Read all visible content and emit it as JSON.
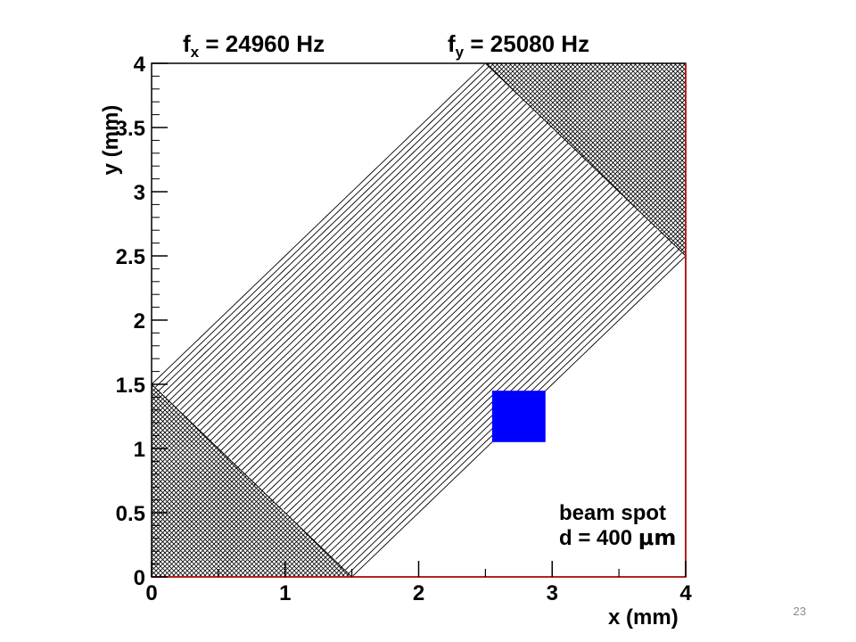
{
  "chart_data": {
    "type": "line",
    "title_left": {
      "main": "f",
      "sub": "x",
      "rest": " = 24960 Hz"
    },
    "title_right": {
      "main": "f",
      "sub": "y",
      "rest": " = 25080 Hz"
    },
    "xlabel": "x (mm)",
    "ylabel": "y (mm)",
    "xlim": [
      0,
      4
    ],
    "ylim": [
      0,
      4
    ],
    "x_ticks": [
      {
        "value": 0,
        "label": "0"
      },
      {
        "value": 1,
        "label": "1"
      },
      {
        "value": 2,
        "label": "2"
      },
      {
        "value": 3,
        "label": "3"
      },
      {
        "value": 4,
        "label": "4"
      }
    ],
    "y_ticks": [
      {
        "value": 0,
        "label": "0"
      },
      {
        "value": 0.5,
        "label": "0.5"
      },
      {
        "value": 1,
        "label": "1"
      },
      {
        "value": 1.5,
        "label": "1.5"
      },
      {
        "value": 2,
        "label": "2"
      },
      {
        "value": 2.5,
        "label": "2.5"
      },
      {
        "value": 3,
        "label": "3"
      },
      {
        "value": 3.5,
        "label": "3.5"
      },
      {
        "value": 4,
        "label": "4"
      }
    ],
    "scan_region_diagonal": {
      "corners": [
        [
          0,
          1.5
        ],
        [
          2.5,
          4
        ],
        [
          4,
          2.5
        ],
        [
          1.5,
          0
        ]
      ]
    },
    "dense_regions": [
      {
        "corners": [
          [
            0,
            0
          ],
          [
            0,
            1.5
          ],
          [
            1.5,
            0
          ]
        ]
      },
      {
        "corners": [
          [
            2.5,
            4
          ],
          [
            4,
            4
          ],
          [
            4,
            2.5
          ]
        ]
      }
    ],
    "beam_spot": {
      "x": [
        2.55,
        2.95
      ],
      "y": [
        1.05,
        1.45
      ],
      "color": "#0000ff"
    },
    "annotation": {
      "line1": "beam spot",
      "line2_prefix": "d = 400 ",
      "line2_unit": "μm"
    },
    "colors": {
      "trace": "#000000",
      "frame_right": "#b22222",
      "beam_spot": "#0000ff"
    }
  },
  "page_number": "23"
}
